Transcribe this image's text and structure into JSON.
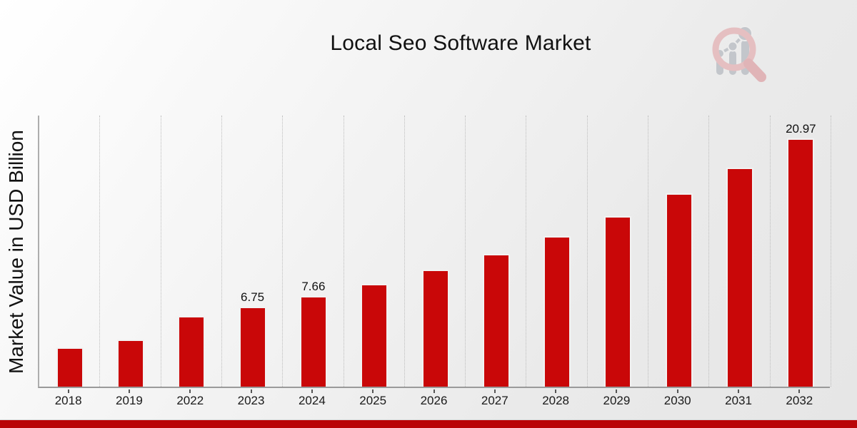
{
  "header": {
    "title": "Local Seo Software Market"
  },
  "logo": {
    "name": "market-research-magnifier-logo",
    "glass_color": "#e5bfc1",
    "bars_color": "#c3c6cb"
  },
  "colors": {
    "bar": "#c90708",
    "footer_strip": "#b90407",
    "grid": "#bdbdbd",
    "axis": "#9a9a9a",
    "text": "#1a1a1a"
  },
  "chart_data": {
    "type": "bar",
    "title": "Local Seo Software Market",
    "xlabel": "",
    "ylabel": "Market Value in USD Billion",
    "categories": [
      "2018",
      "2019",
      "2022",
      "2023",
      "2024",
      "2025",
      "2026",
      "2027",
      "2028",
      "2029",
      "2030",
      "2031",
      "2032"
    ],
    "values": [
      3.3,
      4.0,
      5.95,
      6.75,
      7.66,
      8.69,
      9.86,
      11.18,
      12.68,
      14.38,
      16.31,
      18.5,
      20.97
    ],
    "data_labels": [
      "",
      "",
      "",
      "6.75",
      "7.66",
      "",
      "",
      "",
      "",
      "",
      "",
      "",
      "20.97"
    ],
    "ylim": [
      0,
      23
    ],
    "bar_color": "#c90708",
    "grid": "vertical category boundaries, dotted",
    "legend": "none"
  }
}
